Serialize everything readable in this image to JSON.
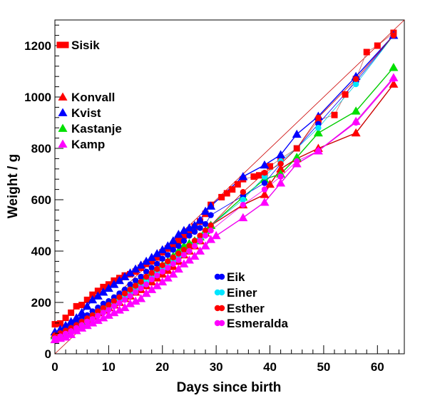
{
  "chart_data": {
    "type": "line",
    "xlabel": "Days since birth",
    "ylabel": "Weight / g",
    "xlim": [
      0,
      65
    ],
    "ylim": [
      0,
      1300
    ],
    "xticks": [
      0,
      10,
      20,
      30,
      40,
      50,
      60
    ],
    "yticks": [
      0,
      200,
      400,
      600,
      800,
      1000,
      1200
    ],
    "diagonal_line": {
      "from": [
        0,
        0
      ],
      "to": [
        65,
        1300
      ],
      "color": "#cc0000"
    },
    "legend_top": [
      {
        "name": "Sisik",
        "color": "#ff0000",
        "marker": "square"
      },
      {
        "name": "Konvall",
        "color": "#ff0000",
        "marker": "triangle"
      },
      {
        "name": "Kvist",
        "color": "#0000ff",
        "marker": "triangle"
      },
      {
        "name": "Kastanje",
        "color": "#00e000",
        "marker": "triangle"
      },
      {
        "name": "Kamp",
        "color": "#ff00ff",
        "marker": "triangle"
      }
    ],
    "legend_bottom": [
      {
        "name": "Eik",
        "color": "#0000ff",
        "marker": "circle"
      },
      {
        "name": "Einer",
        "color": "#00e5ff",
        "marker": "circle"
      },
      {
        "name": "Esther",
        "color": "#ff0000",
        "marker": "circle"
      },
      {
        "name": "Esmeralda",
        "color": "#ff00ff",
        "marker": "circle"
      }
    ],
    "series": [
      {
        "name": "Sisik",
        "color": "#ff0000",
        "line_color": "#cc6666",
        "marker": "square",
        "line_width": 0.8,
        "x": [
          0,
          1,
          2,
          3,
          4,
          5,
          6,
          7,
          8,
          9,
          10,
          11,
          12,
          13,
          14,
          15,
          16,
          17,
          18,
          19,
          20,
          21,
          22,
          23,
          24,
          25,
          26,
          27,
          28,
          29,
          31,
          32,
          33,
          34,
          35,
          37,
          38,
          39,
          40,
          42,
          45,
          49,
          52,
          54,
          56,
          58,
          60,
          63
        ],
        "y": [
          115,
          118,
          140,
          160,
          185,
          190,
          210,
          230,
          245,
          260,
          270,
          285,
          295,
          305,
          310,
          320,
          335,
          350,
          360,
          375,
          395,
          410,
          425,
          440,
          460,
          480,
          495,
          515,
          545,
          580,
          610,
          625,
          640,
          660,
          680,
          690,
          695,
          700,
          730,
          760,
          800,
          910,
          930,
          1010,
          1070,
          1175,
          1200,
          1250
        ]
      },
      {
        "name": "Konvall",
        "color": "#ff0000",
        "line_color": "#cc0000",
        "marker": "triangle",
        "line_width": 1.4,
        "x": [
          0,
          1,
          2,
          3,
          4,
          5,
          6,
          7,
          8,
          9,
          10,
          11,
          12,
          13,
          14,
          15,
          16,
          17,
          18,
          19,
          20,
          21,
          22,
          23,
          24,
          25,
          26,
          27,
          28,
          29,
          35,
          39,
          40,
          42,
          45,
          49,
          56,
          63
        ],
        "y": [
          75,
          80,
          90,
          100,
          110,
          120,
          130,
          145,
          160,
          170,
          180,
          190,
          200,
          215,
          225,
          240,
          250,
          265,
          280,
          295,
          310,
          325,
          340,
          360,
          385,
          400,
          420,
          440,
          470,
          500,
          580,
          620,
          660,
          720,
          760,
          800,
          860,
          1050
        ]
      },
      {
        "name": "Kvist",
        "color": "#0000ff",
        "line_color": "#0000ff",
        "marker": "triangle",
        "line_width": 1.4,
        "x": [
          0,
          1,
          2,
          3,
          4,
          5,
          6,
          7,
          8,
          9,
          10,
          11,
          12,
          13,
          14,
          15,
          16,
          17,
          18,
          19,
          20,
          21,
          22,
          23,
          24,
          25,
          26,
          27,
          28,
          29,
          35,
          39,
          42,
          45,
          49,
          56,
          63
        ],
        "y": [
          85,
          95,
          110,
          125,
          140,
          160,
          185,
          210,
          225,
          240,
          255,
          270,
          285,
          300,
          315,
          330,
          345,
          360,
          375,
          390,
          405,
          420,
          440,
          465,
          480,
          490,
          500,
          520,
          555,
          575,
          690,
          735,
          775,
          855,
          925,
          1080,
          1240
        ]
      },
      {
        "name": "Kastanje",
        "color": "#00e000",
        "line_color": "#00cc00",
        "marker": "triangle",
        "line_width": 1.4,
        "x": [
          0,
          1,
          2,
          3,
          4,
          5,
          6,
          7,
          8,
          9,
          10,
          11,
          12,
          13,
          14,
          15,
          16,
          17,
          18,
          19,
          20,
          21,
          22,
          23,
          24,
          25,
          26,
          27,
          28,
          29,
          35,
          39,
          42,
          45,
          49,
          56,
          63
        ],
        "y": [
          70,
          75,
          85,
          95,
          110,
          125,
          140,
          155,
          170,
          185,
          200,
          210,
          225,
          240,
          255,
          270,
          285,
          300,
          315,
          330,
          345,
          360,
          380,
          400,
          420,
          430,
          440,
          455,
          480,
          500,
          610,
          680,
          700,
          765,
          860,
          945,
          1115
        ]
      },
      {
        "name": "Kamp",
        "color": "#ff00ff",
        "line_color": "#ee00ee",
        "marker": "triangle",
        "line_width": 1.4,
        "x": [
          0,
          1,
          2,
          3,
          4,
          5,
          6,
          7,
          8,
          9,
          10,
          11,
          12,
          13,
          14,
          15,
          16,
          17,
          18,
          19,
          20,
          21,
          22,
          23,
          24,
          25,
          26,
          27,
          28,
          29,
          30,
          35,
          39,
          42,
          45,
          49,
          56,
          63
        ],
        "y": [
          55,
          60,
          65,
          75,
          90,
          100,
          110,
          120,
          130,
          140,
          150,
          160,
          170,
          180,
          195,
          205,
          215,
          235,
          250,
          265,
          280,
          295,
          310,
          330,
          350,
          365,
          380,
          400,
          420,
          445,
          460,
          530,
          590,
          665,
          740,
          790,
          905,
          1075
        ]
      },
      {
        "name": "Eik",
        "color": "#0000ff",
        "line_color": "#0000ff",
        "marker": "circle",
        "line_width": 0.8,
        "x": [
          0,
          1,
          2,
          3,
          4,
          5,
          6,
          7,
          8,
          9,
          10,
          11,
          12,
          13,
          14,
          15,
          16,
          17,
          18,
          19,
          20,
          21,
          22,
          23,
          24,
          25,
          26,
          27,
          28,
          29,
          35,
          39,
          42,
          45,
          49,
          56,
          63
        ],
        "y": [
          75,
          85,
          95,
          110,
          125,
          140,
          150,
          165,
          180,
          195,
          205,
          220,
          235,
          250,
          270,
          285,
          300,
          320,
          335,
          350,
          370,
          385,
          405,
          420,
          440,
          460,
          475,
          490,
          505,
          540,
          615,
          665,
          740,
          800,
          895,
          1060,
          1240
        ]
      },
      {
        "name": "Einer",
        "color": "#00e5ff",
        "line_color": "#00c8e0",
        "marker": "circle",
        "line_width": 0.8,
        "x": [
          0,
          1,
          2,
          3,
          4,
          5,
          6,
          7,
          8,
          9,
          10,
          11,
          12,
          13,
          14,
          15,
          16,
          17,
          18,
          19,
          20,
          21,
          22,
          23,
          24,
          25,
          26,
          27,
          28,
          29,
          35,
          39,
          42,
          45,
          49,
          56,
          63
        ],
        "y": [
          70,
          78,
          88,
          100,
          110,
          125,
          135,
          145,
          160,
          170,
          180,
          195,
          210,
          220,
          235,
          250,
          265,
          280,
          295,
          315,
          330,
          345,
          360,
          380,
          400,
          420,
          435,
          450,
          470,
          500,
          600,
          690,
          750,
          800,
          880,
          1050,
          1240
        ]
      },
      {
        "name": "Esther",
        "color": "#ff0000",
        "line_color": "#cc0000",
        "marker": "circle",
        "line_width": 0.8,
        "x": [
          0,
          1,
          2,
          3,
          4,
          5,
          6,
          7,
          8,
          9,
          10,
          11,
          12,
          13,
          14,
          15,
          16,
          17,
          18,
          19,
          20,
          21,
          22,
          23,
          24,
          25,
          26,
          27,
          28,
          29,
          35,
          39,
          42,
          45,
          49,
          56,
          63
        ],
        "y": [
          72,
          80,
          90,
          100,
          112,
          125,
          138,
          150,
          165,
          178,
          190,
          205,
          220,
          235,
          250,
          265,
          280,
          300,
          315,
          330,
          345,
          360,
          375,
          390,
          405,
          420,
          440,
          460,
          480,
          500,
          630,
          705,
          740,
          800,
          920,
          1070,
          1240
        ]
      },
      {
        "name": "Esmeralda",
        "color": "#ff00ff",
        "line_color": "#ee00ee",
        "marker": "circle",
        "line_width": 0.8,
        "x": [
          0,
          1,
          2,
          3,
          4,
          5,
          6,
          7,
          8,
          9,
          10,
          11,
          12,
          13,
          14,
          15,
          16,
          17,
          18,
          19,
          20,
          21,
          22,
          23,
          24,
          25,
          26,
          27,
          28,
          29,
          35,
          39,
          42,
          45,
          49,
          56,
          63
        ],
        "y": [
          60,
          68,
          78,
          88,
          100,
          112,
          125,
          135,
          148,
          160,
          170,
          185,
          198,
          210,
          225,
          240,
          255,
          270,
          290,
          305,
          320,
          335,
          350,
          365,
          385,
          400,
          420,
          440,
          460,
          480,
          580,
          640,
          690,
          750,
          790,
          900,
          1070
        ]
      }
    ]
  }
}
